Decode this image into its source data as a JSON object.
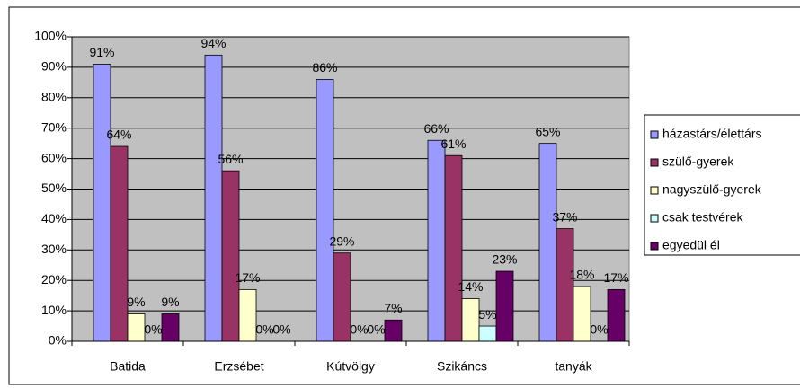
{
  "chart_data": {
    "type": "bar",
    "categories": [
      "Batida",
      "Erzsébet",
      "Kútvölgy",
      "Szikáncs",
      "tanyák"
    ],
    "series": [
      {
        "name": "házastárs/élettárs",
        "color": "#9999ff",
        "values": [
          91,
          94,
          86,
          66,
          65
        ],
        "value_labels": [
          "91%",
          "94%",
          "86%",
          "66%",
          "65%"
        ]
      },
      {
        "name": "szülő-gyerek",
        "color": "#993366",
        "values": [
          64,
          56,
          29,
          61,
          37
        ],
        "value_labels": [
          "64%",
          "56%",
          "29%",
          "61%",
          "37%"
        ]
      },
      {
        "name": "nagyszülő-gyerek",
        "color": "#ffffcc",
        "values": [
          9,
          17,
          0,
          14,
          18
        ],
        "value_labels": [
          "9%",
          "17%",
          "0%",
          "14%",
          "18%"
        ]
      },
      {
        "name": "csak testvérek",
        "color": "#ccffff",
        "values": [
          0,
          0,
          0,
          5,
          0
        ],
        "value_labels": [
          "0%",
          "0%",
          "0%",
          "5%",
          "0%"
        ]
      },
      {
        "name": "egyedül él",
        "color": "#660066",
        "values": [
          9,
          0,
          7,
          23,
          17
        ],
        "value_labels": [
          "9%",
          "0%",
          "7%",
          "23%",
          "17%"
        ]
      }
    ],
    "ylim": [
      0,
      100
    ],
    "yticks": [
      {
        "value": 0,
        "label": "0%"
      },
      {
        "value": 10,
        "label": "10%"
      },
      {
        "value": 20,
        "label": "20%"
      },
      {
        "value": 30,
        "label": "30%"
      },
      {
        "value": 40,
        "label": "40%"
      },
      {
        "value": 50,
        "label": "50%"
      },
      {
        "value": 60,
        "label": "60%"
      },
      {
        "value": 70,
        "label": "70%"
      },
      {
        "value": 80,
        "label": "80%"
      },
      {
        "value": 90,
        "label": "90%"
      },
      {
        "value": 100,
        "label": "100%"
      }
    ],
    "grid": true,
    "plot_background": "#c0c0c0",
    "legend": "right"
  }
}
